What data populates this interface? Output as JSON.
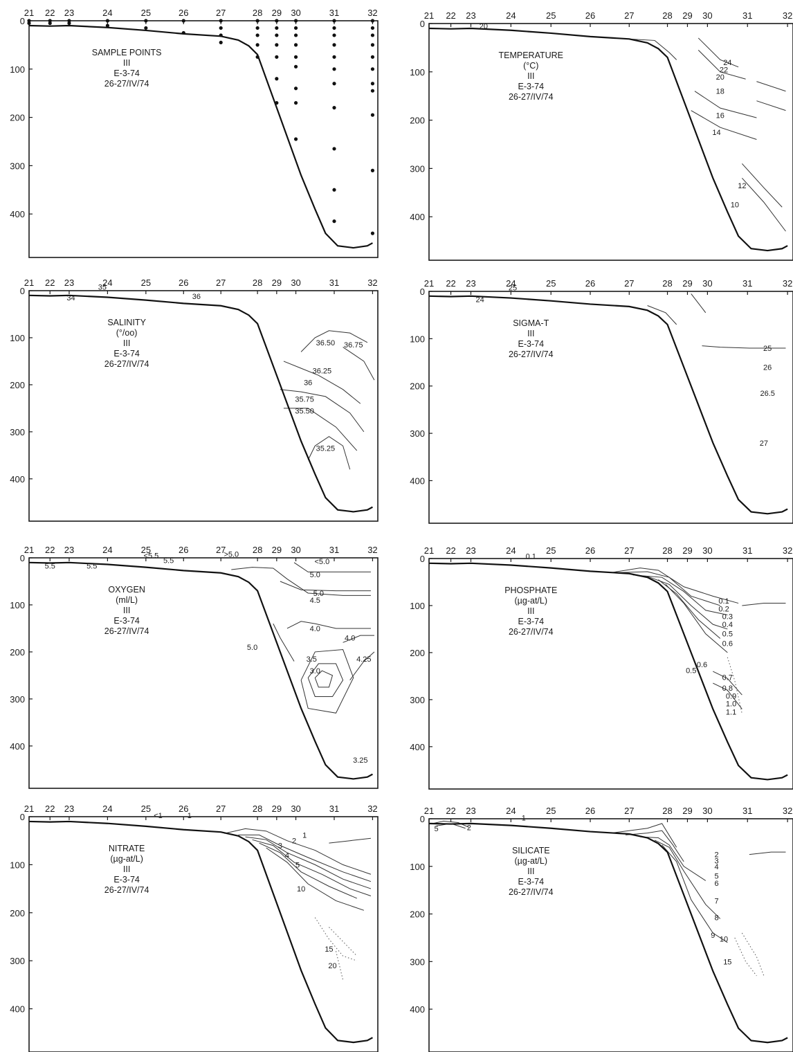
{
  "chart_data": [
    {
      "type": "contour",
      "title_lines": [
        "SAMPLE POINTS",
        "III",
        "E-3-74",
        "26-27/IV/74"
      ],
      "x_ticks": [
        "21",
        "22",
        "23",
        "24",
        "25",
        "26",
        "27",
        "28",
        "29",
        "30",
        "31",
        "32"
      ],
      "y_ticks": [
        "0",
        "100",
        "200",
        "300",
        "400"
      ],
      "ylim": [
        0,
        480
      ],
      "contour_labels": [],
      "sample_points": [
        {
          "station": "21",
          "depths": [
            0,
            5
          ]
        },
        {
          "station": "22",
          "depths": [
            0,
            5
          ]
        },
        {
          "station": "23",
          "depths": [
            0,
            5
          ]
        },
        {
          "station": "24",
          "depths": [
            0,
            10
          ]
        },
        {
          "station": "25",
          "depths": [
            0,
            15
          ]
        },
        {
          "station": "26",
          "depths": [
            0,
            25
          ]
        },
        {
          "station": "27",
          "depths": [
            0,
            15,
            30,
            45
          ]
        },
        {
          "station": "28",
          "depths": [
            0,
            15,
            30,
            50,
            75
          ]
        },
        {
          "station": "29",
          "depths": [
            0,
            15,
            30,
            50,
            75,
            120,
            170
          ]
        },
        {
          "station": "30",
          "depths": [
            0,
            15,
            30,
            50,
            75,
            95,
            140,
            170,
            245
          ]
        },
        {
          "station": "31",
          "depths": [
            0,
            15,
            30,
            50,
            75,
            100,
            130,
            180,
            265,
            350,
            415
          ]
        },
        {
          "station": "32",
          "depths": [
            0,
            15,
            30,
            50,
            75,
            100,
            130,
            145,
            195,
            310,
            440
          ]
        }
      ]
    },
    {
      "type": "contour",
      "title_lines": [
        "TEMPERATURE",
        "(°C)",
        "III",
        "E-3-74",
        "26-27/IV/74"
      ],
      "x_ticks": [
        "21",
        "22",
        "23",
        "24",
        "25",
        "26",
        "27",
        "28",
        "29",
        "30",
        "31",
        "32"
      ],
      "y_ticks": [
        "0",
        "100",
        "200",
        "300",
        "400"
      ],
      "ylim": [
        0,
        480
      ],
      "contour_labels": [
        "20",
        "24",
        "22",
        "20",
        "18",
        "16",
        "14",
        "12",
        "10"
      ]
    },
    {
      "type": "contour",
      "title_lines": [
        "SALINITY",
        "(°/oo)",
        "III",
        "E-3-74",
        "26-27/IV/74"
      ],
      "x_ticks": [
        "21",
        "22",
        "23",
        "24",
        "25",
        "26",
        "27",
        "28",
        "29",
        "30",
        "31",
        "32"
      ],
      "y_ticks": [
        "0",
        "100",
        "200",
        "300",
        "400"
      ],
      "ylim": [
        0,
        480
      ],
      "contour_labels": [
        "35",
        "34",
        "36",
        "36.50",
        "36.75",
        "36.25",
        "36",
        "35.75",
        "35.50",
        "35.25"
      ]
    },
    {
      "type": "contour",
      "title_lines": [
        "SIGMA-T",
        "III",
        "E-3-74",
        "26-27/IV/74"
      ],
      "x_ticks": [
        "21",
        "22",
        "23",
        "24",
        "25",
        "26",
        "27",
        "28",
        "29",
        "30",
        "31",
        "32"
      ],
      "y_ticks": [
        "0",
        "100",
        "200",
        "300",
        "400"
      ],
      "ylim": [
        0,
        480
      ],
      "contour_labels": [
        "25",
        "24",
        "25",
        "26",
        "26.5",
        "27"
      ]
    },
    {
      "type": "contour",
      "title_lines": [
        "OXYGEN",
        "(ml/L)",
        "III",
        "E-3-74",
        "26-27/IV/74"
      ],
      "x_ticks": [
        "21",
        "22",
        "23",
        "24",
        "25",
        "26",
        "27",
        "28",
        "29",
        "30",
        "31",
        "32"
      ],
      "y_ticks": [
        "0",
        "100",
        "200",
        "300",
        "400"
      ],
      "ylim": [
        0,
        480
      ],
      "contour_labels": [
        "5.5",
        "5.5",
        "<5.5",
        "5.5",
        ">5.0",
        "<5.0",
        "5.0",
        "5.0",
        "4.5",
        "4.0",
        "5.0",
        "4.0",
        "3.5",
        "4.25",
        "3.0",
        "3.25"
      ]
    },
    {
      "type": "contour",
      "title_lines": [
        "PHOSPHATE",
        "(µg-at/L)",
        "III",
        "E-3-74",
        "26-27/IV/74"
      ],
      "x_ticks": [
        "21",
        "22",
        "23",
        "24",
        "25",
        "26",
        "27",
        "28",
        "29",
        "30",
        "31",
        "32"
      ],
      "y_ticks": [
        "0",
        "100",
        "200",
        "300",
        "400"
      ],
      "ylim": [
        0,
        480
      ],
      "contour_labels": [
        "0.1",
        "0.1",
        "0.2",
        "0.3",
        "0.4",
        "0.5",
        "0.6",
        "0.6",
        "0.5",
        "0.7",
        "0.8",
        "0.9",
        "1.0",
        "1.1"
      ]
    },
    {
      "type": "contour",
      "title_lines": [
        "NITRATE",
        "(µg-at/L)",
        "III",
        "E-3-74",
        "26-27/IV/74"
      ],
      "x_ticks": [
        "21",
        "22",
        "23",
        "24",
        "25",
        "26",
        "27",
        "28",
        "29",
        "30",
        "31",
        "32"
      ],
      "y_ticks": [
        "0",
        "100",
        "200",
        "300",
        "400"
      ],
      "ylim": [
        0,
        480
      ],
      "contour_labels": [
        "<1",
        "1",
        "1",
        "2",
        "3",
        "4",
        "5",
        "10",
        "15",
        "20"
      ]
    },
    {
      "type": "contour",
      "title_lines": [
        "SILICATE",
        "(µg-at/L)",
        "III",
        "E-3-74",
        "26-27/IV/74"
      ],
      "x_ticks": [
        "21",
        "22",
        "23",
        "24",
        "25",
        "26",
        "27",
        "28",
        "29",
        "30",
        "31",
        "32"
      ],
      "y_ticks": [
        "0",
        "100",
        "200",
        "300",
        "400"
      ],
      "ylim": [
        0,
        480
      ],
      "contour_labels": [
        "5",
        "2",
        "1",
        "2",
        "3",
        "4",
        "5",
        "6",
        "7",
        "8",
        "9",
        "10",
        "15"
      ]
    }
  ]
}
